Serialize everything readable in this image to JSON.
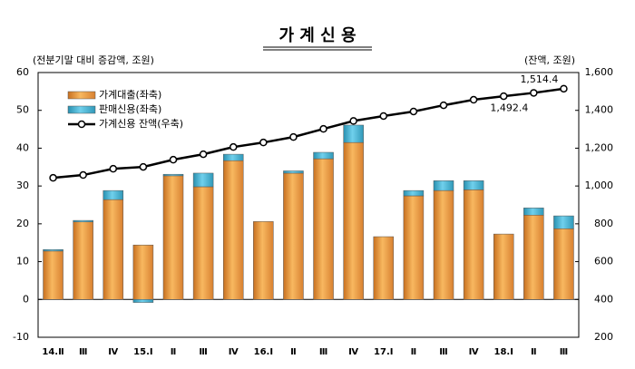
{
  "chart_data": {
    "type": "bar",
    "title": "가 계 신 용",
    "y_label": "(전분기말 대비 증감액, 조원)",
    "y2_label": "(잔액, 조원)",
    "categories": [
      "14.Ⅱ",
      "Ⅲ",
      "Ⅳ",
      "15.Ⅰ",
      "Ⅱ",
      "Ⅲ",
      "Ⅳ",
      "16.Ⅰ",
      "Ⅱ",
      "Ⅲ",
      "Ⅳ",
      "17.Ⅰ",
      "Ⅱ",
      "Ⅲ",
      "Ⅳ",
      "18.Ⅰ",
      "Ⅱ",
      "Ⅲ"
    ],
    "stacked": true,
    "legend": "upper left",
    "series": [
      {
        "name": "가계대출(좌축)",
        "color": "#f0a040",
        "axis": "y",
        "values": [
          12.8,
          20.5,
          26.4,
          14.4,
          32.7,
          29.8,
          36.7,
          20.6,
          33.4,
          37.2,
          41.5,
          16.6,
          27.4,
          28.8,
          29.0,
          17.3,
          22.3,
          18.7
        ]
      },
      {
        "name": "판매신용(좌축)",
        "color": "#40b0d0",
        "axis": "y",
        "values": [
          0.4,
          0.4,
          2.4,
          -0.8,
          0.4,
          3.6,
          1.7,
          0,
          0.6,
          1.7,
          4.6,
          0,
          1.4,
          2.6,
          2.4,
          0,
          1.9,
          3.4
        ]
      },
      {
        "name": "가계신용 잔액(우축)",
        "color": "#000000",
        "axis": "y2",
        "type": "line",
        "values": [
          1043,
          1058,
          1091,
          1101,
          1139,
          1168,
          1206,
          1230,
          1259,
          1302,
          1344,
          1370,
          1394,
          1427,
          1456,
          1475,
          1492.4,
          1514.4
        ],
        "value_labels": [
          null,
          null,
          null,
          null,
          null,
          null,
          null,
          null,
          null,
          null,
          null,
          null,
          null,
          null,
          null,
          null,
          "1,492.4",
          "1,514.4"
        ]
      }
    ],
    "ylim": [
      -10,
      60
    ],
    "yticks": [
      -10,
      0,
      10,
      20,
      30,
      40,
      50,
      60
    ],
    "y2lim": [
      200,
      1600
    ],
    "y2ticks": [
      200,
      400,
      600,
      800,
      {
        "value": 1000,
        "label": "1,000"
      },
      {
        "value": 1200,
        "label": "1,200"
      },
      {
        "value": 1400,
        "label": "1,400"
      },
      {
        "value": 1600,
        "label": "1,600"
      }
    ]
  }
}
